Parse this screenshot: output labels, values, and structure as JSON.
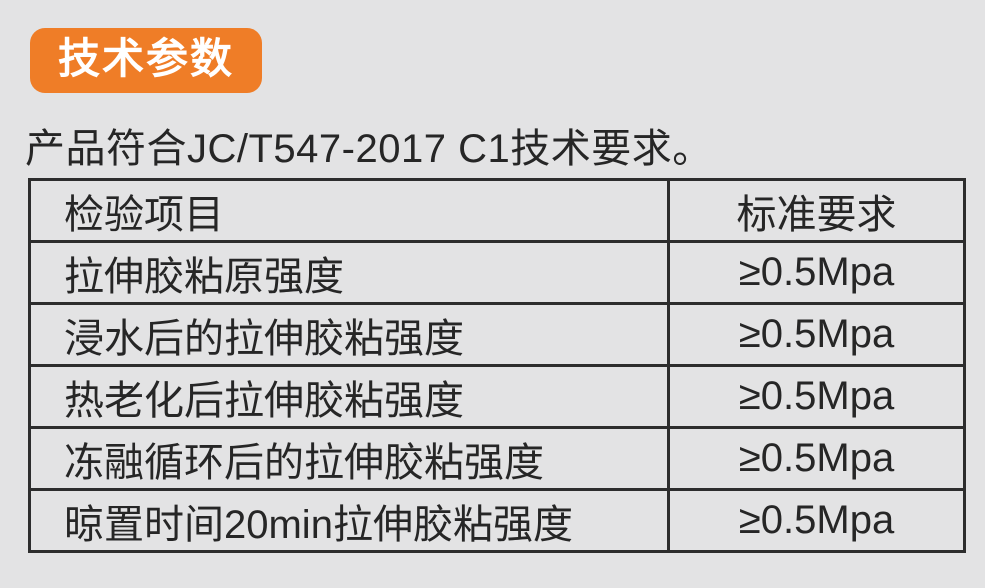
{
  "page": {
    "background_color": "#e3e3e4",
    "accent_color": "#ef7d27",
    "text_color": "#262626",
    "border_color": "#2d2d2d"
  },
  "header": {
    "badge_label": "技术参数"
  },
  "intro": {
    "text": "产品符合JC/T547-2017 C1技术要求。"
  },
  "table": {
    "columns": [
      {
        "label": "检验项目"
      },
      {
        "label": "标准要求"
      }
    ],
    "rows": [
      {
        "item": "拉伸胶粘原强度",
        "requirement": "≥0.5Mpa"
      },
      {
        "item": "浸水后的拉伸胶粘强度",
        "requirement": "≥0.5Mpa"
      },
      {
        "item": "热老化后拉伸胶粘强度",
        "requirement": "≥0.5Mpa"
      },
      {
        "item": "冻融循环后的拉伸胶粘强度",
        "requirement": "≥0.5Mpa"
      },
      {
        "item": "晾置时间20min拉伸胶粘强度",
        "requirement": "≥0.5Mpa"
      }
    ]
  }
}
